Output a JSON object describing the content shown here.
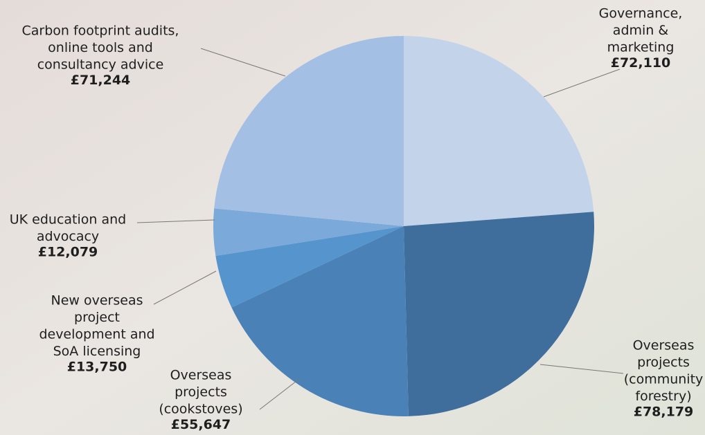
{
  "chart_data": {
    "type": "pie",
    "categories": [
      [
        "Governance,",
        "admin &",
        "marketing"
      ],
      [
        "Overseas",
        "projects",
        "(community",
        "forestry)"
      ],
      [
        "Overseas",
        "projects",
        "(cookstoves)"
      ],
      [
        "New overseas",
        "project",
        "development and",
        "SoA licensing"
      ],
      [
        "UK education and",
        "advocacy"
      ],
      [
        "Carbon footprint audits,",
        "online tools and",
        "consultancy advice"
      ]
    ],
    "values": [
      72110,
      78179,
      55647,
      13750,
      12079,
      71244
    ],
    "value_labels": [
      "£72,110",
      "£78,179",
      "£55,647",
      "£13,750",
      "£12,079",
      "£71,244"
    ],
    "colors": [
      "#c3d3ea",
      "#3f6e9c",
      "#4a82b8",
      "#5594cc",
      "#7ba9da",
      "#a3bfe3"
    ]
  }
}
